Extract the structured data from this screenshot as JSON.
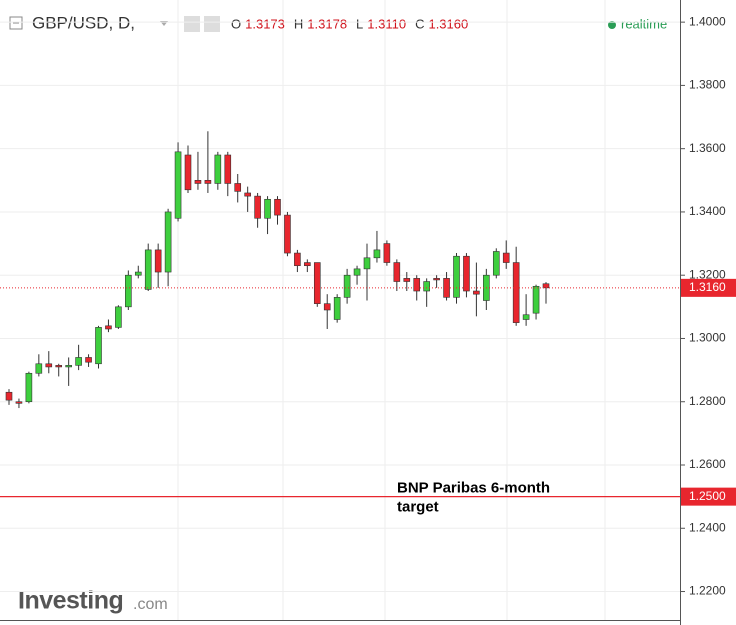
{
  "chart_data": {
    "type": "candlestick",
    "header": {
      "symbol": "GBP/USD, D,",
      "fields": [
        {
          "key": "O",
          "label": "1.3173"
        },
        {
          "key": "H",
          "label": "1.3178"
        },
        {
          "key": "L",
          "label": "1.3110"
        },
        {
          "key": "C",
          "label": "1.3160"
        }
      ],
      "status": "realtime"
    },
    "up_color": "#3ecf3e",
    "down_color": "#e8262e",
    "open": [
      1.283,
      1.28,
      1.28,
      1.289,
      1.292,
      1.2915,
      1.291,
      1.2915,
      1.294,
      1.292,
      1.304,
      1.3035,
      1.31,
      1.32,
      1.3155,
      1.328,
      1.321,
      1.338,
      1.358,
      1.35,
      1.35,
      1.349,
      1.358,
      1.349,
      1.346,
      1.345,
      1.338,
      1.344,
      1.339,
      1.327,
      1.324,
      1.324,
      1.311,
      1.306,
      1.313,
      1.32,
      1.322,
      1.3255,
      1.33,
      1.324,
      1.319,
      1.319,
      1.315,
      1.319,
      1.319,
      1.313,
      1.326,
      1.315,
      1.312,
      1.32,
      1.327,
      1.324,
      1.306,
      1.308,
      1.3173
    ],
    "high": [
      1.284,
      1.281,
      1.2895,
      1.295,
      1.296,
      1.292,
      1.294,
      1.298,
      1.295,
      1.304,
      1.306,
      1.3105,
      1.3215,
      1.323,
      1.33,
      1.33,
      1.341,
      1.362,
      1.361,
      1.359,
      1.3655,
      1.359,
      1.359,
      1.352,
      1.348,
      1.346,
      1.345,
      1.345,
      1.34,
      1.328,
      1.325,
      1.324,
      1.314,
      1.314,
      1.322,
      1.323,
      1.33,
      1.334,
      1.331,
      1.325,
      1.321,
      1.32,
      1.319,
      1.32,
      1.321,
      1.327,
      1.327,
      1.324,
      1.322,
      1.3285,
      1.331,
      1.329,
      1.314,
      1.317,
      1.3178
    ],
    "low": [
      1.279,
      1.278,
      1.2795,
      1.288,
      1.289,
      1.288,
      1.285,
      1.29,
      1.291,
      1.2905,
      1.302,
      1.303,
      1.309,
      1.319,
      1.315,
      1.316,
      1.3165,
      1.337,
      1.346,
      1.347,
      1.346,
      1.347,
      1.345,
      1.343,
      1.34,
      1.335,
      1.333,
      1.336,
      1.326,
      1.321,
      1.321,
      1.31,
      1.303,
      1.305,
      1.311,
      1.317,
      1.312,
      1.324,
      1.323,
      1.315,
      1.315,
      1.312,
      1.31,
      1.316,
      1.312,
      1.311,
      1.313,
      1.307,
      1.309,
      1.319,
      1.322,
      1.304,
      1.304,
      1.306,
      1.311
    ],
    "close": [
      1.2805,
      1.2795,
      1.289,
      1.292,
      1.291,
      1.291,
      1.2915,
      1.294,
      1.2925,
      1.3035,
      1.303,
      1.31,
      1.32,
      1.321,
      1.328,
      1.321,
      1.34,
      1.359,
      1.347,
      1.349,
      1.349,
      1.358,
      1.349,
      1.3465,
      1.345,
      1.338,
      1.344,
      1.339,
      1.327,
      1.323,
      1.323,
      1.311,
      1.309,
      1.313,
      1.32,
      1.322,
      1.3255,
      1.328,
      1.324,
      1.318,
      1.318,
      1.315,
      1.318,
      1.3185,
      1.313,
      1.326,
      1.315,
      1.314,
      1.32,
      1.3275,
      1.324,
      1.305,
      1.3075,
      1.3165,
      1.316
    ],
    "ylim": [
      1.211,
      1.407
    ],
    "yticks": [
      {
        "value": 1.4,
        "label": "1.4000"
      },
      {
        "value": 1.38,
        "label": "1.3800"
      },
      {
        "value": 1.36,
        "label": "1.3600"
      },
      {
        "value": 1.34,
        "label": "1.3400"
      },
      {
        "value": 1.32,
        "label": "1.3200"
      },
      {
        "value": 1.3,
        "label": "1.3000"
      },
      {
        "value": 1.28,
        "label": "1.2800"
      },
      {
        "value": 1.26,
        "label": "1.2600"
      },
      {
        "value": 1.24,
        "label": "1.2400"
      },
      {
        "value": 1.22,
        "label": "1.2200"
      }
    ],
    "grid": true,
    "last_price": {
      "value": 1.316,
      "label": "1.3160"
    },
    "target": {
      "value": 1.25,
      "label": "1.2500",
      "annotation": [
        "BNP Paribas 6-month",
        "target"
      ]
    },
    "logo": {
      "brand": "Investing",
      "suffix": ".com"
    }
  }
}
